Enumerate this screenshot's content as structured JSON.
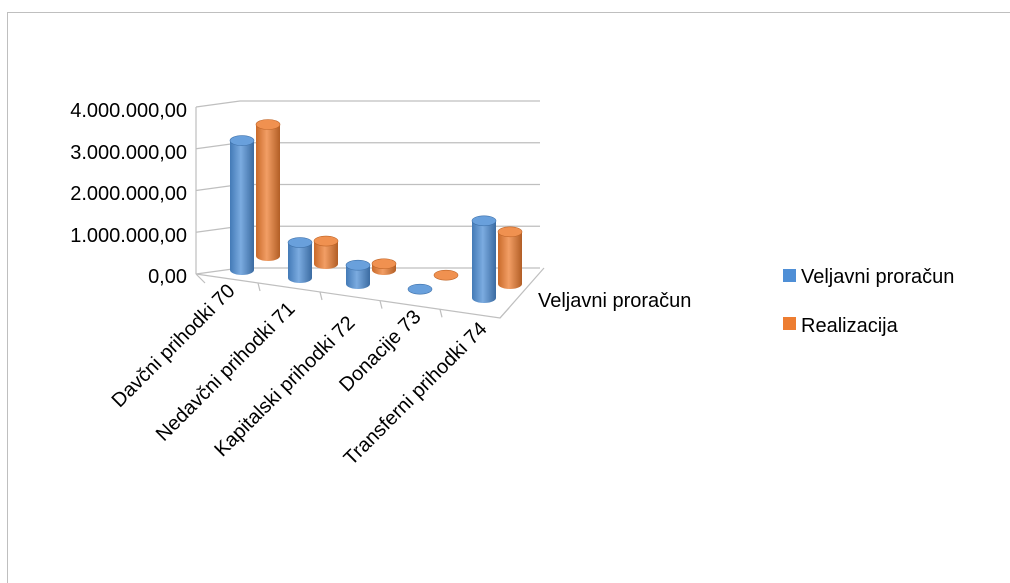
{
  "chart_data": {
    "type": "bar",
    "style": "3d-cylinder",
    "categories": [
      "Davčni prihodki 70",
      "Nedavčni prihodki 71",
      "Kapitalski prihodki 72",
      "Donacije 73",
      "Transferni prihodki 74"
    ],
    "series": [
      {
        "name": "Veljavni proračun",
        "color": "#4f8fd6",
        "values": [
          3100000,
          850000,
          450000,
          20000,
          1850000
        ]
      },
      {
        "name": "Realizacija",
        "color": "#ed7d31",
        "values": [
          3150000,
          550000,
          150000,
          20000,
          1250000
        ]
      }
    ],
    "depth_axis_label": "Veljavni proračun",
    "y_ticks": [
      "4.000.000,00",
      "3.000.000,00",
      "2.000.000,00",
      "1.000.000,00",
      "0,00"
    ],
    "ylim": [
      0,
      4000000
    ],
    "grid": true,
    "legend_position": "right"
  }
}
